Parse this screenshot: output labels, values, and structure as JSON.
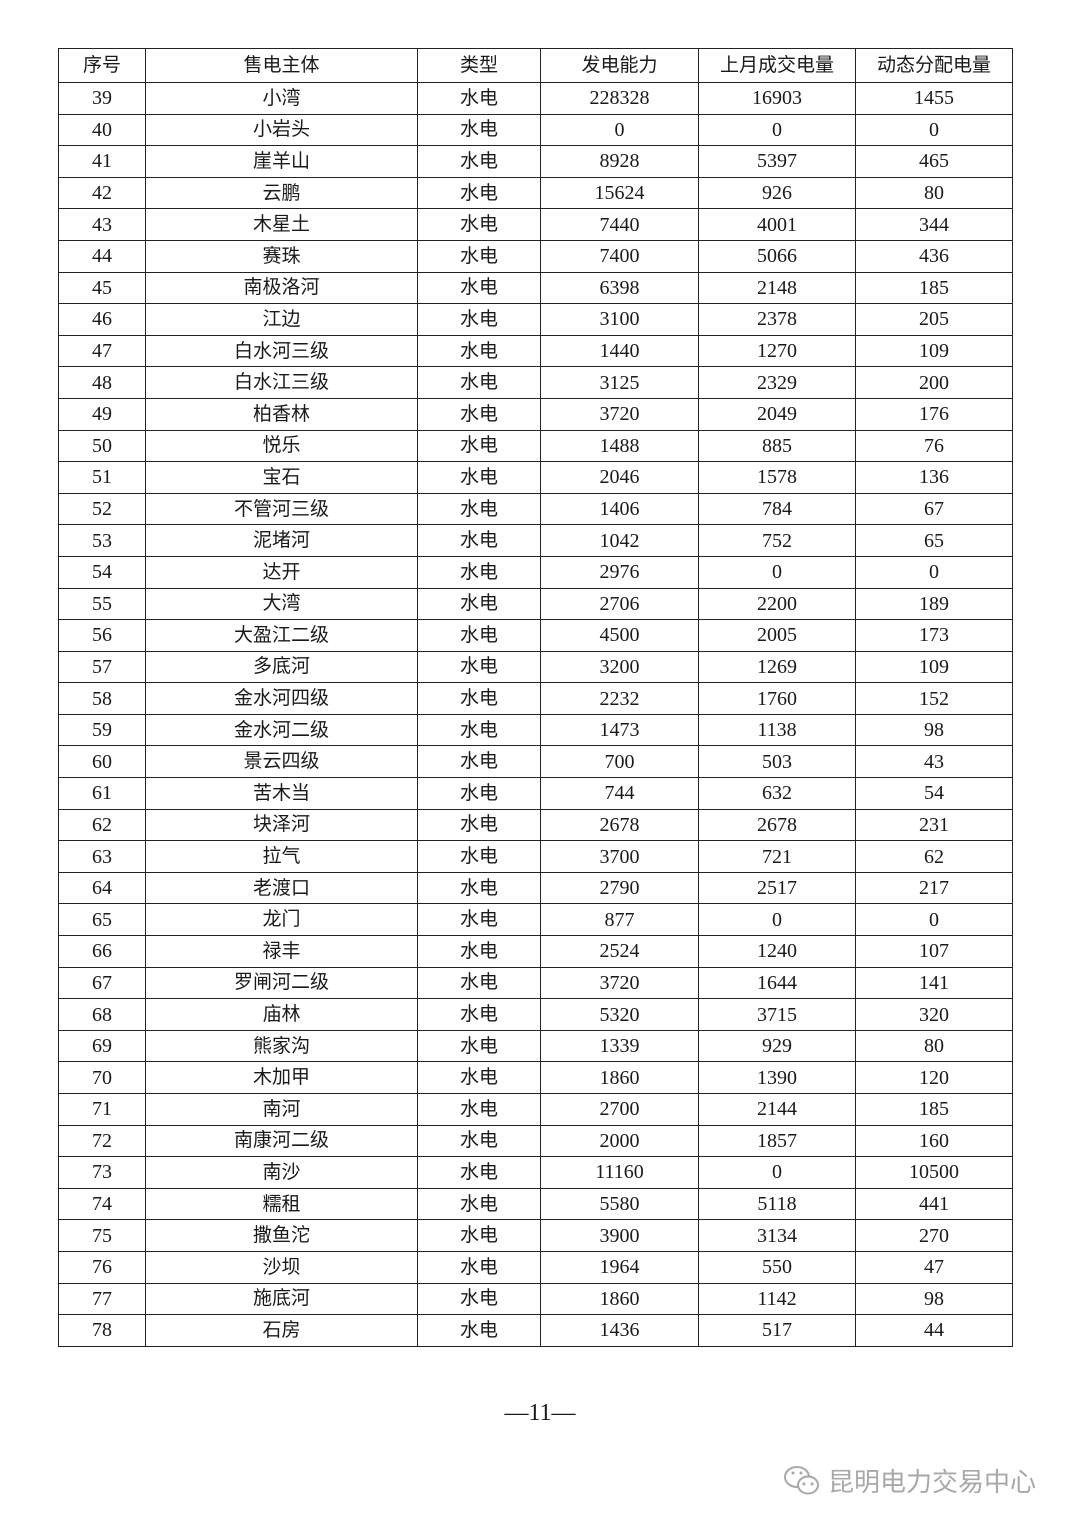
{
  "table": {
    "headers": [
      "序号",
      "售电主体",
      "类型",
      "发电能力",
      "上月成交电量",
      "动态分配电量"
    ],
    "rows": [
      [
        "39",
        "小湾",
        "水电",
        "228328",
        "16903",
        "1455"
      ],
      [
        "40",
        "小岩头",
        "水电",
        "0",
        "0",
        "0"
      ],
      [
        "41",
        "崖羊山",
        "水电",
        "8928",
        "5397",
        "465"
      ],
      [
        "42",
        "云鹏",
        "水电",
        "15624",
        "926",
        "80"
      ],
      [
        "43",
        "木星土",
        "水电",
        "7440",
        "4001",
        "344"
      ],
      [
        "44",
        "赛珠",
        "水电",
        "7400",
        "5066",
        "436"
      ],
      [
        "45",
        "南极洛河",
        "水电",
        "6398",
        "2148",
        "185"
      ],
      [
        "46",
        "江边",
        "水电",
        "3100",
        "2378",
        "205"
      ],
      [
        "47",
        "白水河三级",
        "水电",
        "1440",
        "1270",
        "109"
      ],
      [
        "48",
        "白水江三级",
        "水电",
        "3125",
        "2329",
        "200"
      ],
      [
        "49",
        "柏香林",
        "水电",
        "3720",
        "2049",
        "176"
      ],
      [
        "50",
        "悦乐",
        "水电",
        "1488",
        "885",
        "76"
      ],
      [
        "51",
        "宝石",
        "水电",
        "2046",
        "1578",
        "136"
      ],
      [
        "52",
        "不管河三级",
        "水电",
        "1406",
        "784",
        "67"
      ],
      [
        "53",
        "泥堵河",
        "水电",
        "1042",
        "752",
        "65"
      ],
      [
        "54",
        "达开",
        "水电",
        "2976",
        "0",
        "0"
      ],
      [
        "55",
        "大湾",
        "水电",
        "2706",
        "2200",
        "189"
      ],
      [
        "56",
        "大盈江二级",
        "水电",
        "4500",
        "2005",
        "173"
      ],
      [
        "57",
        "多底河",
        "水电",
        "3200",
        "1269",
        "109"
      ],
      [
        "58",
        "金水河四级",
        "水电",
        "2232",
        "1760",
        "152"
      ],
      [
        "59",
        "金水河二级",
        "水电",
        "1473",
        "1138",
        "98"
      ],
      [
        "60",
        "景云四级",
        "水电",
        "700",
        "503",
        "43"
      ],
      [
        "61",
        "苦木当",
        "水电",
        "744",
        "632",
        "54"
      ],
      [
        "62",
        "块泽河",
        "水电",
        "2678",
        "2678",
        "231"
      ],
      [
        "63",
        "拉气",
        "水电",
        "3700",
        "721",
        "62"
      ],
      [
        "64",
        "老渡口",
        "水电",
        "2790",
        "2517",
        "217"
      ],
      [
        "65",
        "龙门",
        "水电",
        "877",
        "0",
        "0"
      ],
      [
        "66",
        "禄丰",
        "水电",
        "2524",
        "1240",
        "107"
      ],
      [
        "67",
        "罗闸河二级",
        "水电",
        "3720",
        "1644",
        "141"
      ],
      [
        "68",
        "庙林",
        "水电",
        "5320",
        "3715",
        "320"
      ],
      [
        "69",
        "熊家沟",
        "水电",
        "1339",
        "929",
        "80"
      ],
      [
        "70",
        "木加甲",
        "水电",
        "1860",
        "1390",
        "120"
      ],
      [
        "71",
        "南河",
        "水电",
        "2700",
        "2144",
        "185"
      ],
      [
        "72",
        "南康河二级",
        "水电",
        "2000",
        "1857",
        "160"
      ],
      [
        "73",
        "南沙",
        "水电",
        "11160",
        "0",
        "10500"
      ],
      [
        "74",
        "糯租",
        "水电",
        "5580",
        "5118",
        "441"
      ],
      [
        "75",
        "撒鱼沱",
        "水电",
        "3900",
        "3134",
        "270"
      ],
      [
        "76",
        "沙坝",
        "水电",
        "1964",
        "550",
        "47"
      ],
      [
        "77",
        "施底河",
        "水电",
        "1860",
        "1142",
        "98"
      ],
      [
        "78",
        "石房",
        "水电",
        "1436",
        "517",
        "44"
      ]
    ]
  },
  "footer": {
    "page_number": "—11—",
    "watermark": "昆明电力交易中心",
    "watermark_icon": "wechat-icon"
  }
}
